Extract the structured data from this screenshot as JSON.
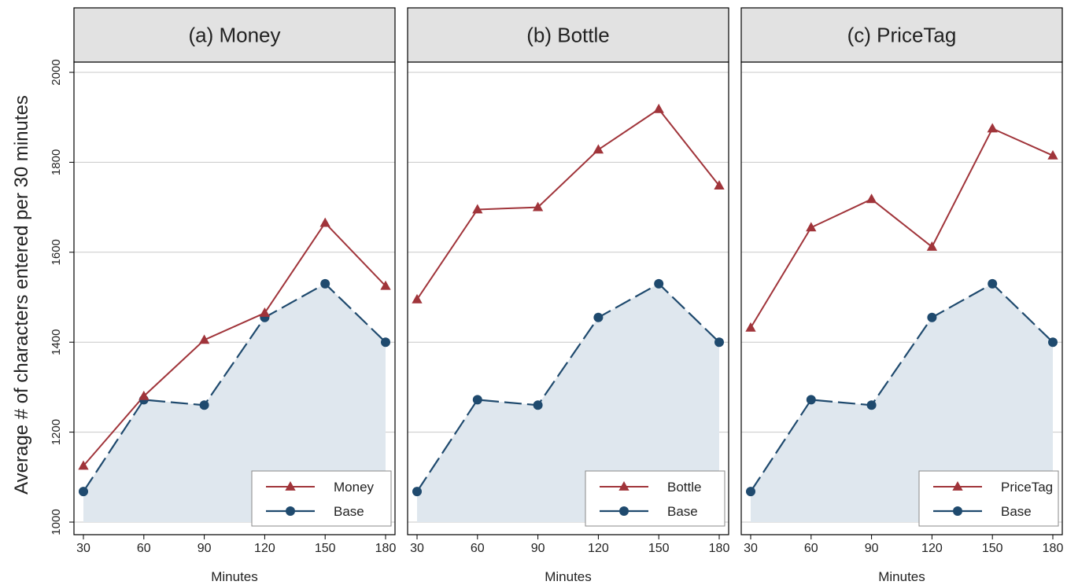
{
  "figure": {
    "ylabel": "Average # of characters entered per 30 minutes",
    "xlabel": "Minutes"
  },
  "colors": {
    "treatment": "#a0343a",
    "base": "#1f4a6e",
    "base_fill": "#dfe7ee",
    "header_bg": "#e2e2e2",
    "grid": "#c8c8c8"
  },
  "chart_data": [
    {
      "type": "line",
      "title": "(a) Money",
      "xlabel": "Minutes",
      "ylabel": "Average # of characters entered per 30 minutes",
      "x": [
        30,
        60,
        90,
        120,
        150,
        180
      ],
      "ylim": [
        1000,
        2000
      ],
      "yticks": [
        1000,
        1200,
        1400,
        1600,
        1800,
        2000
      ],
      "grid": true,
      "legend_position": "bottom-right",
      "series": [
        {
          "name": "Money",
          "marker": "triangle",
          "style": "solid",
          "values": [
            1125,
            1280,
            1405,
            1465,
            1665,
            1525
          ]
        },
        {
          "name": "Base",
          "marker": "circle",
          "style": "dashed",
          "filled": true,
          "values": [
            1068,
            1272,
            1260,
            1455,
            1530,
            1400
          ]
        }
      ]
    },
    {
      "type": "line",
      "title": "(b) Bottle",
      "xlabel": "Minutes",
      "ylabel": "",
      "x": [
        30,
        60,
        90,
        120,
        150,
        180
      ],
      "ylim": [
        1000,
        2000
      ],
      "yticks": [
        1000,
        1200,
        1400,
        1600,
        1800,
        2000
      ],
      "grid": true,
      "legend_position": "bottom-right",
      "series": [
        {
          "name": "Bottle",
          "marker": "triangle",
          "style": "solid",
          "values": [
            1495,
            1695,
            1700,
            1828,
            1918,
            1748
          ]
        },
        {
          "name": "Base",
          "marker": "circle",
          "style": "dashed",
          "filled": true,
          "values": [
            1068,
            1272,
            1260,
            1455,
            1530,
            1400
          ]
        }
      ]
    },
    {
      "type": "line",
      "title": "(c) PriceTag",
      "xlabel": "Minutes",
      "ylabel": "",
      "x": [
        30,
        60,
        90,
        120,
        150,
        180
      ],
      "ylim": [
        1000,
        2000
      ],
      "yticks": [
        1000,
        1200,
        1400,
        1600,
        1800,
        2000
      ],
      "grid": true,
      "legend_position": "bottom-right",
      "series": [
        {
          "name": "PriceTag",
          "marker": "triangle",
          "style": "solid",
          "values": [
            1432,
            1655,
            1718,
            1612,
            1875,
            1815
          ]
        },
        {
          "name": "Base",
          "marker": "circle",
          "style": "dashed",
          "filled": true,
          "values": [
            1068,
            1272,
            1260,
            1455,
            1530,
            1400
          ]
        }
      ]
    }
  ]
}
